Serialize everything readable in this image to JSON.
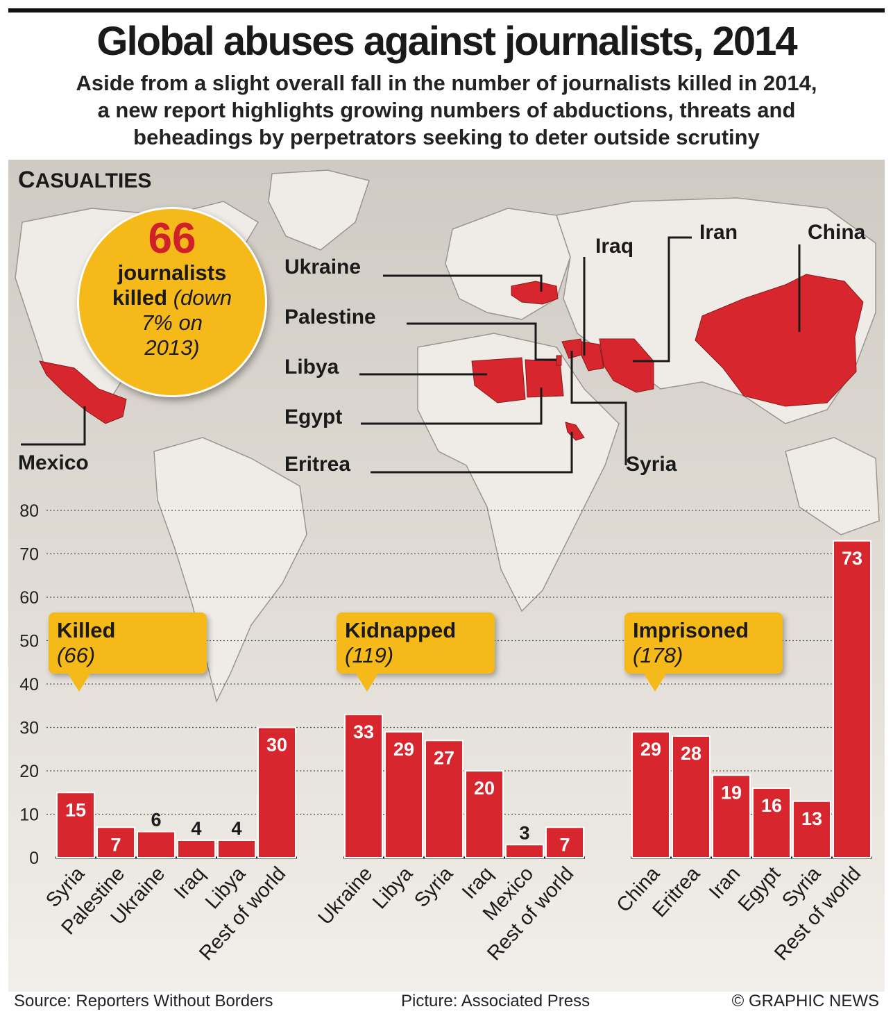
{
  "header": {
    "title": "Global abuses against journalists, 2014",
    "subtitle_lines": [
      "Aside from a slight overall fall in the number of journalists killed in 2014,",
      "a new report highlights growing numbers of abductions, threats and",
      "beheadings by perpetrators seeking to deter outside scrutiny"
    ]
  },
  "section": {
    "label_cap": "C",
    "label_rest": "ASUALTIES"
  },
  "highlight": {
    "number": "66",
    "line1": "journalists",
    "line2_bold": "killed",
    "line2_italic": "(down",
    "line3": "7% on",
    "line4": "2013)"
  },
  "map_labels": {
    "mexico": "Mexico",
    "ukraine": "Ukraine",
    "palestine": "Palestine",
    "libya": "Libya",
    "egypt": "Egypt",
    "eritrea": "Eritrea",
    "iraq": "Iraq",
    "iran": "Iran",
    "china": "China",
    "syria": "Syria"
  },
  "colors": {
    "bar": "#d7262d",
    "callout": "#f6b91a",
    "highlight_number": "#d0202a"
  },
  "chart_data": {
    "type": "bar",
    "ylim": [
      0,
      80
    ],
    "yticks": [
      0,
      10,
      20,
      30,
      40,
      50,
      60,
      70,
      80
    ],
    "grid": true,
    "groups": [
      {
        "name": "Killed",
        "total": "(66)",
        "categories": [
          "Syria",
          "Palestine",
          "Ukraine",
          "Iraq",
          "Libya",
          "Rest of world"
        ],
        "values": [
          15,
          7,
          6,
          4,
          4,
          30
        ]
      },
      {
        "name": "Kidnapped",
        "total": "(119)",
        "categories": [
          "Ukraine",
          "Libya",
          "Syria",
          "Iraq",
          "Mexico",
          "Rest of world"
        ],
        "values": [
          33,
          29,
          27,
          20,
          3,
          7
        ]
      },
      {
        "name": "Imprisoned",
        "total": "(178)",
        "categories": [
          "China",
          "Eritrea",
          "Iran",
          "Egypt",
          "Syria",
          "Rest of world"
        ],
        "values": [
          29,
          28,
          19,
          16,
          13,
          73
        ]
      }
    ]
  },
  "footer": {
    "source": "Source: Reporters Without Borders",
    "picture": "Picture: Associated Press",
    "credit": "© GRAPHIC NEWS"
  }
}
